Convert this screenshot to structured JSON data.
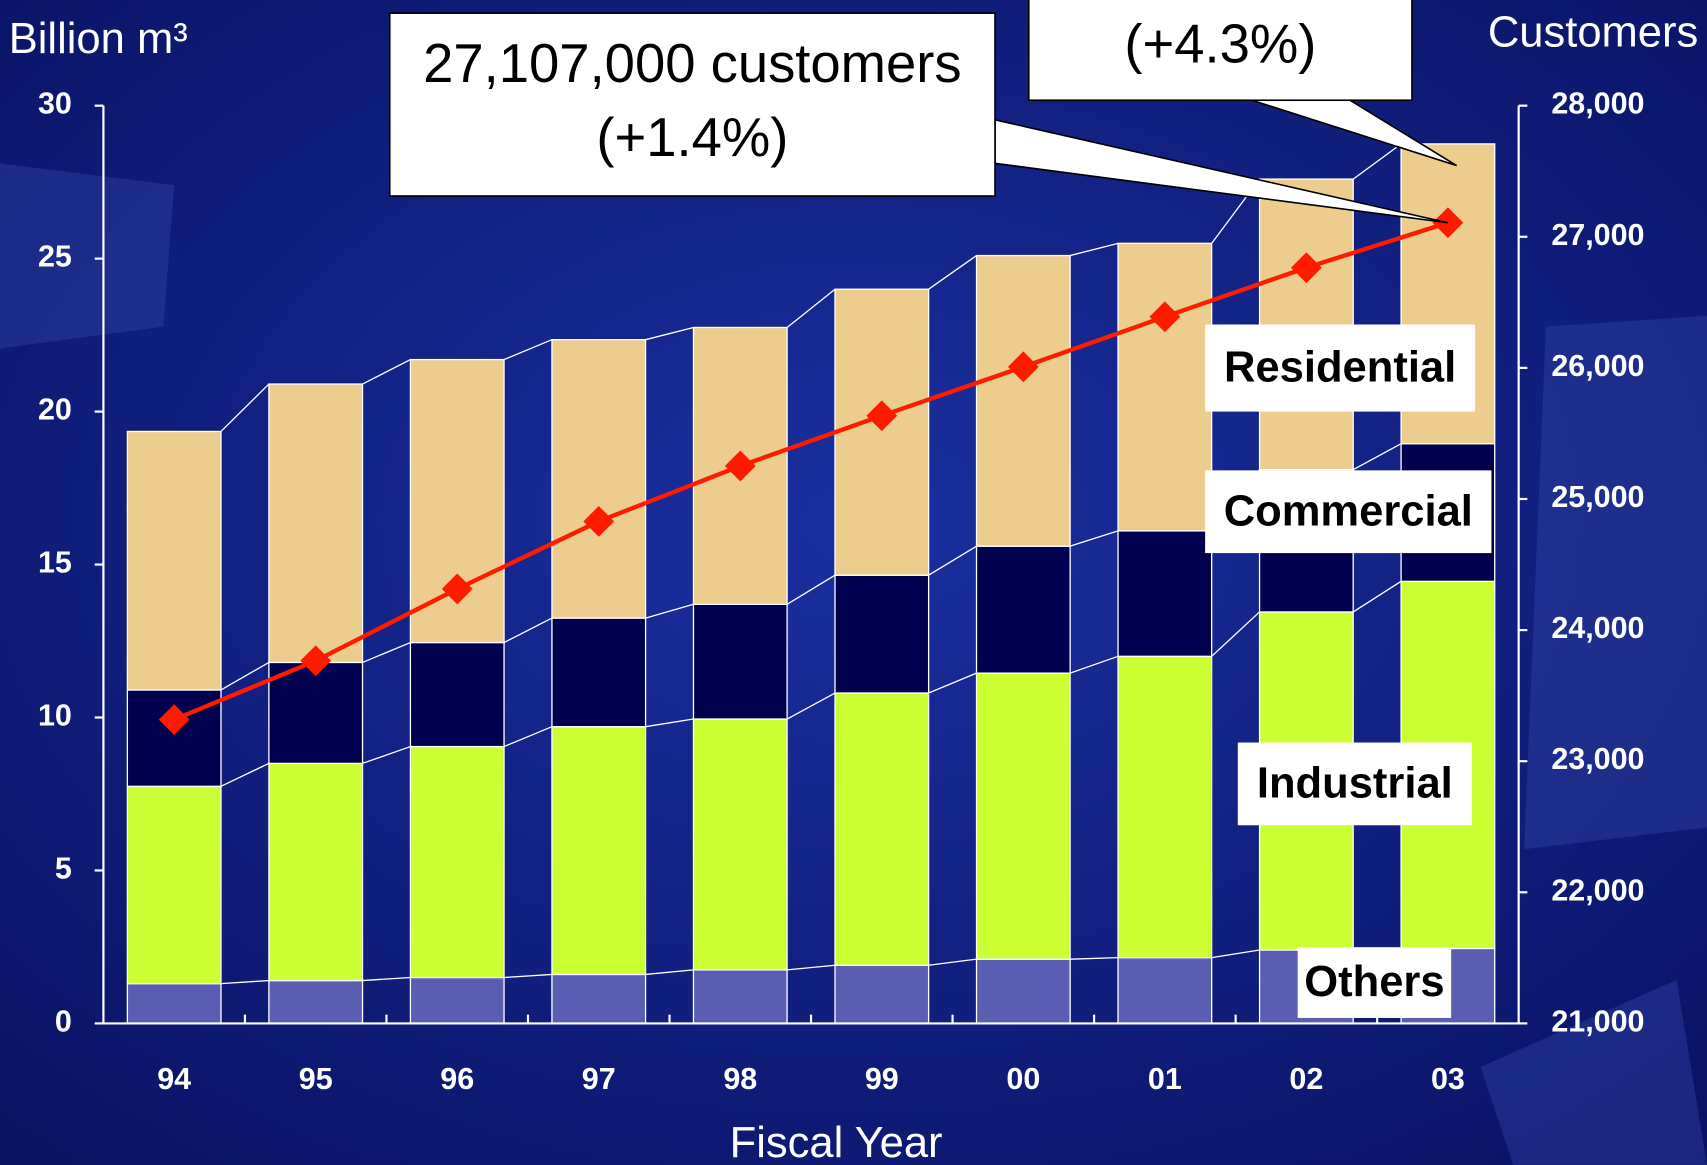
{
  "chart_data": {
    "type": "bar",
    "stacked": true,
    "y_label": "Billion m³",
    "y2_label": "Customers",
    "x_label": "Fiscal Year",
    "categories": [
      "94",
      "95",
      "96",
      "97",
      "98",
      "99",
      "00",
      "01",
      "02",
      "03"
    ],
    "series": [
      {
        "name": "Others",
        "color": "#5a5eb2",
        "values": [
          1.3,
          1.4,
          1.5,
          1.6,
          1.75,
          1.9,
          2.1,
          2.15,
          2.4,
          2.45
        ]
      },
      {
        "name": "Industrial",
        "color": "#ccff33",
        "values": [
          6.45,
          7.1,
          7.55,
          8.1,
          8.2,
          8.9,
          9.35,
          9.85,
          11.05,
          12.0
        ]
      },
      {
        "name": "Commercial",
        "color": "#00004e",
        "values": [
          3.15,
          3.3,
          3.4,
          3.55,
          3.75,
          3.85,
          4.15,
          4.1,
          4.65,
          4.5
        ]
      },
      {
        "name": "Residential",
        "color": "#eccd8d",
        "values": [
          8.45,
          9.1,
          9.25,
          9.1,
          9.05,
          9.35,
          9.5,
          9.4,
          9.5,
          9.8
        ]
      },
      {
        "type": "line",
        "axis": "y2",
        "color": "#ff1a00",
        "values": [
          23317,
          23766,
          24314,
          24829,
          25252,
          25635,
          26008,
          26390,
          26764,
          27107
        ]
      }
    ],
    "ylim": [
      0,
      30
    ],
    "yticks": [
      0,
      5,
      10,
      15,
      20,
      25,
      30
    ],
    "y2lim": [
      21000,
      28000
    ],
    "y2ticks": [
      {
        "value": 21000,
        "label": "21,000"
      },
      {
        "value": 22000,
        "label": "22,000"
      },
      {
        "value": 23000,
        "label": "23,000"
      },
      {
        "value": 24000,
        "label": "24,000"
      },
      {
        "value": 25000,
        "label": "25,000"
      },
      {
        "value": 26000,
        "label": "26,000"
      },
      {
        "value": 27000,
        "label": "27,000"
      },
      {
        "value": 28000,
        "label": "28,000"
      }
    ],
    "annotations": [
      "27,107,000 customers",
      "(+1.4%)",
      "(+4.3%)"
    ]
  }
}
